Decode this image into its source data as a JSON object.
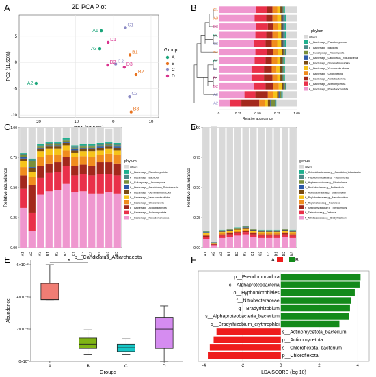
{
  "panel_labels": [
    "A",
    "B",
    "C",
    "D",
    "E",
    "F"
  ],
  "chart_data": [
    {
      "panel": "A",
      "type": "scatter",
      "title": "2D PCA Plot",
      "xlabel": "PC1 (27.59%)",
      "ylabel": "PC2 (11.59%)",
      "xlim": [
        -25,
        12
      ],
      "ylim": [
        -10.5,
        9
      ],
      "xticks": [
        -20,
        -10,
        0,
        10
      ],
      "yticks": [
        -10,
        -5,
        0,
        5
      ],
      "grid": true,
      "legend_title": "Group",
      "legend_position": "right",
      "groups": [
        {
          "name": "A",
          "color": "#1aa57a"
        },
        {
          "name": "B",
          "color": "#e8731f"
        },
        {
          "name": "C",
          "color": "#8b8ac4"
        },
        {
          "name": "D",
          "color": "#d9338e"
        }
      ],
      "points": [
        {
          "label": "A1",
          "group": "A",
          "x": -3.2,
          "y": 6.0
        },
        {
          "label": "A3",
          "group": "A",
          "x": -3.6,
          "y": 2.6
        },
        {
          "label": "A2",
          "group": "A",
          "x": -20.5,
          "y": -4.0
        },
        {
          "label": "B1",
          "group": "B",
          "x": 4.4,
          "y": 1.4
        },
        {
          "label": "B2",
          "group": "B",
          "x": 6.0,
          "y": -2.3
        },
        {
          "label": "B3",
          "group": "B",
          "x": 4.7,
          "y": -9.4
        },
        {
          "label": "C1",
          "group": "C",
          "x": 3.2,
          "y": 6.6
        },
        {
          "label": "C2",
          "group": "C",
          "x": 0.6,
          "y": -0.3
        },
        {
          "label": "C3",
          "group": "C",
          "x": 4.3,
          "y": -6.5
        },
        {
          "label": "D1",
          "group": "D",
          "x": -1.4,
          "y": 3.8
        },
        {
          "label": "D2",
          "group": "D",
          "x": -1.5,
          "y": -0.5
        },
        {
          "label": "D3",
          "group": "D",
          "x": 2.9,
          "y": -0.9
        }
      ]
    },
    {
      "panel": "B",
      "type": "bar",
      "orientation": "horizontal-stacked",
      "xlabel": "Relative abundance",
      "xticks": [
        "0",
        "0.25",
        "0.50",
        "0.75",
        "1.00"
      ],
      "legend_title": "phylum",
      "legend_position": "right",
      "categories": [
        "C1",
        "A3",
        "D3",
        "C1",
        "C3",
        "B3",
        "C2",
        "A1",
        "D1",
        "D2",
        "A3",
        "A2"
      ],
      "label_colors": [
        "#e8731f",
        "#e8731f",
        "#d9338e",
        "#1aa57a",
        "#8b8ac4",
        "#e8731f",
        "#1aa57a",
        "#8b8ac4",
        "#d9338e",
        "#d9338e",
        "#8b8ac4",
        "#8b8ac4"
      ],
      "series": [
        {
          "name": "k__Bacteria;p__Pseudomonadota",
          "color": "#ef97cf",
          "values": [
            0.48,
            0.46,
            0.48,
            0.47,
            0.45,
            0.47,
            0.46,
            0.42,
            0.42,
            0.45,
            0.33,
            0.14
          ]
        },
        {
          "name": "k__Bacteria;p__Actinomycetota",
          "color": "#e9304a",
          "values": [
            0.14,
            0.15,
            0.15,
            0.14,
            0.15,
            0.15,
            0.14,
            0.16,
            0.16,
            0.15,
            0.14,
            0.15
          ]
        },
        {
          "name": "k__Bacteria;p__Acidobacteriota",
          "color": "#a3281c",
          "values": [
            0.07,
            0.08,
            0.07,
            0.08,
            0.08,
            0.08,
            0.08,
            0.1,
            0.11,
            0.1,
            0.16,
            0.23
          ]
        },
        {
          "name": "k__Bacteria;p__Chloroflexota",
          "color": "#f08c1e",
          "values": [
            0.06,
            0.06,
            0.06,
            0.07,
            0.07,
            0.06,
            0.07,
            0.06,
            0.06,
            0.07,
            0.07,
            0.07
          ]
        },
        {
          "name": "k__Bacteria;p__Verrucomicrobiota",
          "color": "#f6c31a",
          "values": [
            0.04,
            0.05,
            0.04,
            0.04,
            0.05,
            0.05,
            0.04,
            0.04,
            0.04,
            0.04,
            0.05,
            0.04
          ]
        },
        {
          "name": "k__Bacteria;p__Gemmatimonadota",
          "color": "#7a4b12",
          "values": [
            0.02,
            0.02,
            0.02,
            0.02,
            0.02,
            0.02,
            0.02,
            0.03,
            0.02,
            0.02,
            0.02,
            0.03
          ]
        },
        {
          "name": "k__Bacteria;p__Candidatus_Rokubacteria",
          "color": "#2e5aa8",
          "values": [
            0.01,
            0.01,
            0.01,
            0.01,
            0.01,
            0.01,
            0.01,
            0.01,
            0.01,
            0.01,
            0.01,
            0.01
          ]
        },
        {
          "name": "k__Eukaryota;p__Ascomycota",
          "color": "#7a8f3a",
          "values": [
            0.01,
            0.01,
            0.01,
            0.01,
            0.01,
            0.01,
            0.01,
            0.01,
            0.01,
            0.01,
            0.02,
            0.05
          ]
        },
        {
          "name": "k__Bacteria;p__Bacillota",
          "color": "#4b8b88",
          "values": [
            0.01,
            0.01,
            0.01,
            0.01,
            0.01,
            0.01,
            0.01,
            0.01,
            0.01,
            0.01,
            0.01,
            0.01
          ]
        },
        {
          "name": "k__Bacteria;p__Planctomycetota",
          "color": "#1fb08e",
          "values": [
            0.01,
            0.01,
            0.01,
            0.01,
            0.01,
            0.01,
            0.01,
            0.01,
            0.01,
            0.01,
            0.01,
            0.01
          ]
        },
        {
          "name": "Others",
          "color": "#d9d9d9",
          "values": [
            0.15,
            0.14,
            0.14,
            0.14,
            0.14,
            0.13,
            0.15,
            0.15,
            0.15,
            0.13,
            0.18,
            0.26
          ]
        }
      ]
    },
    {
      "panel": "C",
      "type": "bar",
      "orientation": "vertical-stacked",
      "ylabel": "Relative abundance",
      "ylim": [
        0,
        1
      ],
      "yticks": [
        "0.00",
        "0.25",
        "0.50",
        "0.75",
        "1.00"
      ],
      "legend_title": "phylum",
      "legend_position": "right",
      "categories": [
        "A1",
        "A2",
        "A3",
        "B1",
        "B2",
        "B3",
        "C1",
        "C2",
        "C3",
        "D1",
        "D2",
        "D3"
      ],
      "series": [
        {
          "name": "k__Bacteria;p__Pseudomonadota",
          "values": [
            0.33,
            0.14,
            0.44,
            0.47,
            0.48,
            0.53,
            0.46,
            0.47,
            0.45,
            0.45,
            0.46,
            0.45
          ]
        },
        {
          "name": "k__Bacteria;p__Actinomycetota",
          "values": [
            0.16,
            0.15,
            0.14,
            0.15,
            0.15,
            0.15,
            0.14,
            0.14,
            0.15,
            0.16,
            0.15,
            0.15
          ]
        },
        {
          "name": "k__Bacteria;p__Acidobacteriota",
          "values": [
            0.11,
            0.23,
            0.1,
            0.08,
            0.08,
            0.07,
            0.08,
            0.08,
            0.08,
            0.1,
            0.1,
            0.1
          ]
        },
        {
          "name": "k__Bacteria;p__Chloroflexota",
          "values": [
            0.07,
            0.07,
            0.07,
            0.07,
            0.06,
            0.06,
            0.07,
            0.07,
            0.07,
            0.06,
            0.07,
            0.07
          ]
        },
        {
          "name": "k__Bacteria;p__Verrucomicrobiota",
          "values": [
            0.05,
            0.04,
            0.05,
            0.05,
            0.05,
            0.04,
            0.04,
            0.04,
            0.05,
            0.04,
            0.04,
            0.04
          ]
        },
        {
          "name": "k__Bacteria;p__Gemmatimonadota",
          "values": [
            0.02,
            0.03,
            0.02,
            0.02,
            0.02,
            0.02,
            0.02,
            0.02,
            0.02,
            0.02,
            0.02,
            0.02
          ]
        },
        {
          "name": "k__Bacteria;p__Candidatus_Rokubacteria",
          "values": [
            0.01,
            0.01,
            0.01,
            0.01,
            0.01,
            0.01,
            0.01,
            0.01,
            0.01,
            0.01,
            0.01,
            0.01
          ]
        },
        {
          "name": "k__Eukaryota;p__Ascomycota",
          "values": [
            0.02,
            0.05,
            0.01,
            0.01,
            0.01,
            0.01,
            0.01,
            0.01,
            0.01,
            0.01,
            0.01,
            0.01
          ]
        },
        {
          "name": "k__Bacteria;p__Bacillota",
          "values": [
            0.01,
            0.01,
            0.01,
            0.01,
            0.01,
            0.01,
            0.01,
            0.01,
            0.01,
            0.01,
            0.01,
            0.01
          ]
        },
        {
          "name": "k__Bacteria;p__Planctomycetota",
          "values": [
            0.01,
            0.01,
            0.01,
            0.01,
            0.01,
            0.01,
            0.01,
            0.01,
            0.01,
            0.01,
            0.01,
            0.01
          ]
        },
        {
          "name": "Others",
          "values": [
            0.21,
            0.26,
            0.14,
            0.12,
            0.12,
            0.09,
            0.15,
            0.14,
            0.14,
            0.13,
            0.11,
            0.13
          ]
        }
      ]
    },
    {
      "panel": "D",
      "type": "bar",
      "orientation": "vertical-stacked",
      "ylabel": "Relative abundance",
      "ylim": [
        0,
        1
      ],
      "yticks": [
        "0.00",
        "0.25",
        "0.50",
        "0.75",
        "1.00"
      ],
      "legend_title": "genus",
      "legend_position": "right",
      "categories": [
        "A1",
        "A2",
        "A3",
        "B1",
        "B2",
        "B3",
        "C1",
        "C2",
        "C3",
        "D1",
        "D2",
        "D3"
      ],
      "series": [
        {
          "name": "f__Nitrobacteraceae;g__Bradyrhizobium",
          "color": "#ef97cf",
          "values": [
            0.07,
            0.02,
            0.08,
            0.09,
            0.1,
            0.11,
            0.09,
            0.08,
            0.08,
            0.08,
            0.09,
            0.08
          ]
        },
        {
          "name": "f__Treboniaceae;g__Trebonia",
          "color": "#e9304a",
          "values": [
            0.02,
            0.005,
            0.02,
            0.02,
            0.02,
            0.02,
            0.02,
            0.02,
            0.02,
            0.02,
            0.02,
            0.02
          ]
        },
        {
          "name": "f__Streptomycetaceae;g__Streptomyces",
          "color": "#a3281c",
          "values": [
            0.01,
            0.005,
            0.01,
            0.01,
            0.01,
            0.01,
            0.01,
            0.01,
            0.01,
            0.01,
            0.01,
            0.01
          ]
        },
        {
          "name": "f__Reyranellaceae;g__Reyranella",
          "color": "#f08c1e",
          "values": [
            0.01,
            0.005,
            0.01,
            0.01,
            0.01,
            0.01,
            0.01,
            0.01,
            0.01,
            0.01,
            0.01,
            0.01
          ]
        },
        {
          "name": "f__Phyllobacteriaceae;g__Mesorhizobium",
          "color": "#f6c31a",
          "values": [
            0.01,
            0.003,
            0.01,
            0.01,
            0.01,
            0.01,
            0.01,
            0.01,
            0.01,
            0.01,
            0.01,
            0.01
          ]
        },
        {
          "name": "f__Acidobacteriaceae;g__Edaphobacter",
          "color": "#7a4b12",
          "values": [
            0.005,
            0.002,
            0.005,
            0.005,
            0.005,
            0.005,
            0.005,
            0.005,
            0.005,
            0.005,
            0.005,
            0.005
          ]
        },
        {
          "name": "f__Burkholderiaceae;g__Burkholderia",
          "color": "#2e5aa8",
          "values": [
            0.004,
            0.002,
            0.004,
            0.004,
            0.004,
            0.004,
            0.004,
            0.004,
            0.004,
            0.004,
            0.004,
            0.004
          ]
        },
        {
          "name": "f__Hyphomicrobiaceae;g__Rhodoplanes",
          "color": "#7a8f3a",
          "values": [
            0.004,
            0.002,
            0.004,
            0.004,
            0.004,
            0.004,
            0.004,
            0.004,
            0.004,
            0.004,
            0.004,
            0.004
          ]
        },
        {
          "name": "f__Pseudomonadaceae;g__Pseudomonas",
          "color": "#4b8b88",
          "values": [
            0.003,
            0.002,
            0.003,
            0.003,
            0.003,
            0.003,
            0.003,
            0.003,
            0.003,
            0.003,
            0.003,
            0.003
          ]
        },
        {
          "name": "f__Chthoniobacteraceae;g__Candidatus_Udaeobacter",
          "color": "#1fb08e",
          "values": [
            0.003,
            0.002,
            0.003,
            0.003,
            0.003,
            0.003,
            0.003,
            0.003,
            0.003,
            0.003,
            0.003,
            0.003
          ]
        },
        {
          "name": "Others",
          "color": "#d9d9d9",
          "values": [
            0.866,
            0.962,
            0.856,
            0.846,
            0.836,
            0.826,
            0.846,
            0.856,
            0.856,
            0.856,
            0.846,
            0.856
          ]
        }
      ]
    },
    {
      "panel": "E",
      "type": "box",
      "title": "p__Candidatus_Altiarchaeota",
      "xlabel": "Groups",
      "ylabel": "Abundance",
      "categories": [
        "A",
        "B",
        "C",
        "D"
      ],
      "yticks": [
        "0×10⁰",
        "2×10⁻⁶",
        "4×10⁻⁶",
        "6×10⁻⁶"
      ],
      "ylim": [
        0,
        6.3
      ],
      "y_unit_scale": "×10⁻⁶",
      "significance": {
        "between": [
          "A",
          "B"
        ],
        "label": "*"
      },
      "boxes": [
        {
          "group": "A",
          "color": "#f07d74",
          "min": 3.8,
          "q1": 3.8,
          "median": 3.85,
          "q3": 4.85,
          "max": 6.0
        },
        {
          "group": "B",
          "color": "#7fb414",
          "min": 0.4,
          "q1": 0.8,
          "median": 1.05,
          "q3": 1.45,
          "max": 1.95
        },
        {
          "group": "C",
          "color": "#16c6c6",
          "min": 0.4,
          "q1": 0.6,
          "median": 0.85,
          "q3": 1.05,
          "max": 1.4
        },
        {
          "group": "D",
          "color": "#d58cf0",
          "min": 0.0,
          "q1": 0.8,
          "median": 2.0,
          "q3": 2.7,
          "max": 3.45
        }
      ]
    },
    {
      "panel": "F",
      "type": "bar",
      "orientation": "horizontal",
      "xlabel": "LDA SCORE (log 10)",
      "xlim": [
        -4.3,
        4.6
      ],
      "xticks": [
        -4,
        -2,
        0,
        2,
        4
      ],
      "legend": [
        {
          "name": "A",
          "color": "#ee1c1c"
        },
        {
          "name": "B",
          "color": "#138a1a"
        }
      ],
      "legend_position": "top",
      "categories": [
        "p__Pseudomonadota",
        "c__Alphaproteobacteria",
        "o__Hyphomicrobiales",
        "f__Nitrobacteraceae",
        "g__Bradyrhizobium",
        "s__Alphaproteobacteria_bacterium",
        "s__Bradyrhizobium_erythrophlei",
        "s__Actinomycetota_bacterium",
        "p__Actinomycetota",
        "s__Chloroflexota_bacterium",
        "p__Chloroflexota"
      ],
      "values": [
        4.15,
        4.1,
        3.85,
        3.65,
        3.6,
        3.55,
        3.05,
        -3.35,
        -3.5,
        -3.7,
        -3.8
      ],
      "groups": [
        "B",
        "B",
        "B",
        "B",
        "B",
        "B",
        "B",
        "A",
        "A",
        "A",
        "A"
      ]
    }
  ]
}
